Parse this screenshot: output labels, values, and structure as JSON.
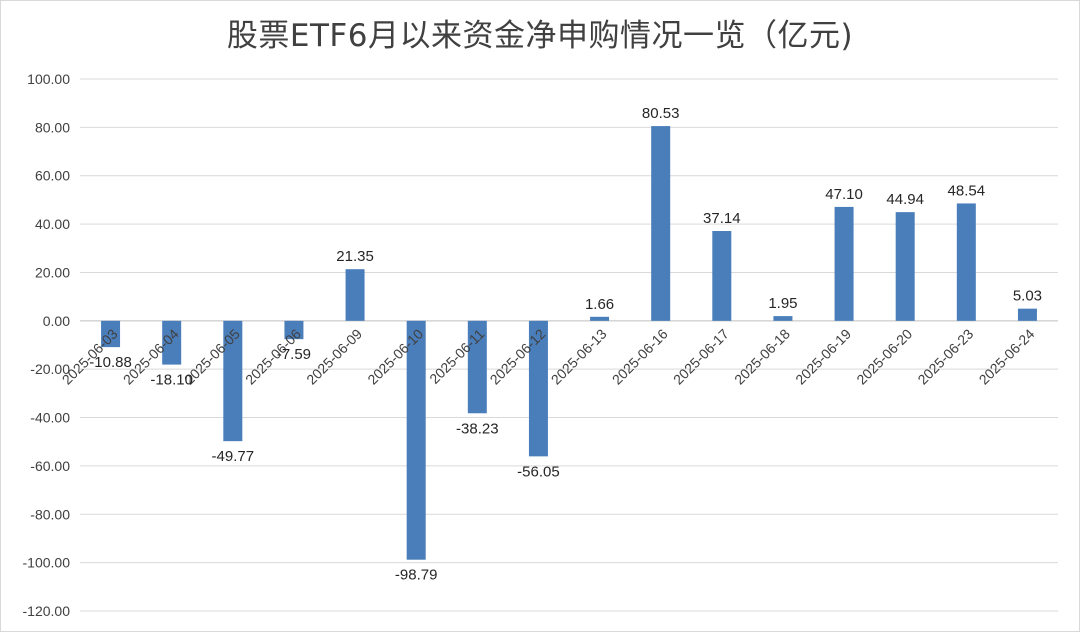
{
  "chart_data": {
    "type": "bar",
    "title": "股票ETF6月以来资金净申购情况一览（亿元)",
    "xlabel": "",
    "ylabel": "",
    "categories": [
      "2025-06-03",
      "2025-06-04",
      "2025-06-05",
      "2025-06-06",
      "2025-06-09",
      "2025-06-10",
      "2025-06-11",
      "2025-06-12",
      "2025-06-13",
      "2025-06-16",
      "2025-06-17",
      "2025-06-18",
      "2025-06-19",
      "2025-06-20",
      "2025-06-23",
      "2025-06-24"
    ],
    "values": [
      -10.88,
      -18.1,
      -49.77,
      -7.59,
      21.35,
      -98.79,
      -38.23,
      -56.05,
      1.66,
      80.53,
      37.14,
      1.95,
      47.1,
      44.94,
      48.54,
      5.03
    ],
    "value_labels": [
      "-10.88",
      "-18.10",
      "-49.77",
      "-7.59",
      "21.35",
      "-98.79",
      "-38.23",
      "-56.05",
      "1.66",
      "80.53",
      "37.14",
      "1.95",
      "47.10",
      "44.94",
      "48.54",
      "5.03"
    ],
    "ylim": [
      -120,
      100
    ],
    "yticks": [
      100,
      80,
      60,
      40,
      20,
      0,
      -20,
      -40,
      -60,
      -80,
      -100,
      -120
    ],
    "ytick_labels": [
      "100.00",
      "80.00",
      "60.00",
      "40.00",
      "20.00",
      "0.00",
      "-20.00",
      "-40.00",
      "-60.00",
      "-80.00",
      "-100.00",
      "-120.00"
    ],
    "grid": true,
    "legend": "none",
    "colors": {
      "bar": "#4a7ebb",
      "grid": "#d9d9d9",
      "axis": "#bfbfbf"
    }
  }
}
